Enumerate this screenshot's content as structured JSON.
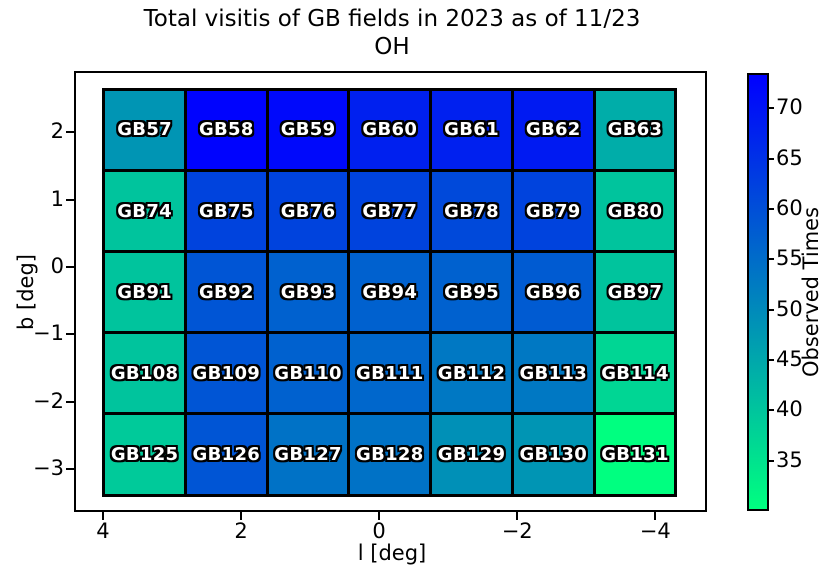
{
  "chart_data": {
    "type": "heatmap",
    "title": "Total visitis of GB fields in 2023 as of 11/23",
    "subtitle": "OH",
    "xlabel": "l [deg]",
    "ylabel": "b [deg]",
    "colorbar_label": "Observed Times",
    "colormap": "winter_r",
    "vmin": 30,
    "vmax": 73.5,
    "xlim": [
      4.39,
      -4.72
    ],
    "ylim": [
      -3.61,
      2.88
    ],
    "grid_extent": {
      "l": [
        4.01,
        -4.32
      ],
      "b": [
        2.66,
        -3.41
      ]
    },
    "x_ticks": [
      {
        "value": 4,
        "label": "4"
      },
      {
        "value": 2,
        "label": "2"
      },
      {
        "value": 0,
        "label": "0"
      },
      {
        "value": -2,
        "label": "−2"
      },
      {
        "value": -4,
        "label": "−4"
      }
    ],
    "y_ticks": [
      {
        "value": 2,
        "label": "2"
      },
      {
        "value": 1,
        "label": "1"
      },
      {
        "value": 0,
        "label": "0"
      },
      {
        "value": -1,
        "label": "−1"
      },
      {
        "value": -2,
        "label": "−2"
      },
      {
        "value": -3,
        "label": "−3"
      }
    ],
    "colorbar_ticks": [
      {
        "value": 70,
        "label": "70"
      },
      {
        "value": 65,
        "label": "65"
      },
      {
        "value": 60,
        "label": "60"
      },
      {
        "value": 55,
        "label": "55"
      },
      {
        "value": 50,
        "label": "50"
      },
      {
        "value": 45,
        "label": "45"
      },
      {
        "value": 40,
        "label": "40"
      },
      {
        "value": 35,
        "label": "35"
      }
    ],
    "rows": [
      {
        "fields": [
          "GB57",
          "GB58",
          "GB59",
          "GB60",
          "GB61",
          "GB62",
          "GB63"
        ],
        "values": [
          48,
          73,
          72,
          68,
          68,
          69,
          44
        ]
      },
      {
        "fields": [
          "GB74",
          "GB75",
          "GB76",
          "GB77",
          "GB78",
          "GB79",
          "GB80"
        ],
        "values": [
          40,
          62,
          62,
          62,
          61,
          62,
          40
        ]
      },
      {
        "fields": [
          "GB91",
          "GB92",
          "GB93",
          "GB94",
          "GB95",
          "GB96",
          "GB97"
        ],
        "values": [
          40,
          59,
          57,
          57,
          57,
          58,
          40
        ]
      },
      {
        "fields": [
          "GB108",
          "GB109",
          "GB110",
          "GB111",
          "GB112",
          "GB113",
          "GB114"
        ],
        "values": [
          40,
          59,
          57,
          56,
          53,
          53,
          37
        ]
      },
      {
        "fields": [
          "GB125",
          "GB126",
          "GB127",
          "GB128",
          "GB129",
          "GB130",
          "GB131"
        ],
        "values": [
          39,
          59,
          54,
          54,
          49,
          48,
          30
        ]
      }
    ],
    "legend_position": "right",
    "grid_on": false
  }
}
